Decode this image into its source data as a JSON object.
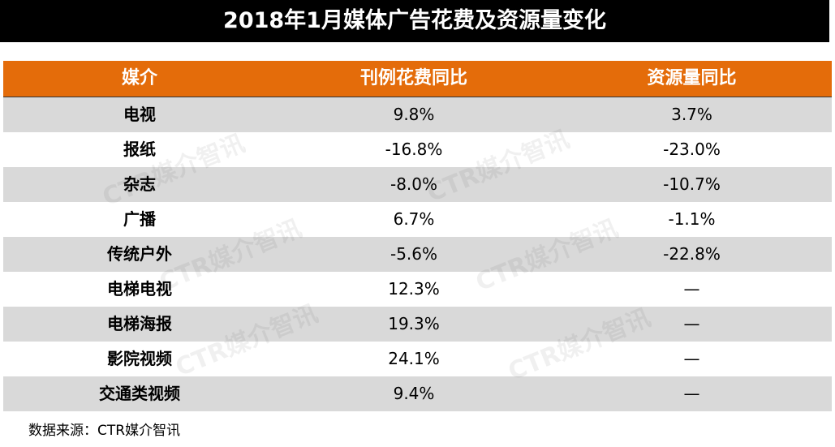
{
  "title": "2018年1月媒体广告花费及资源量变化",
  "table": {
    "header": [
      "媒介",
      "刊例花费同比",
      "资源量同比"
    ],
    "rows": [
      [
        "电视",
        "9.8%",
        "3.7%"
      ],
      [
        "报纸",
        "-16.8%",
        "-23.0%"
      ],
      [
        "杂志",
        "-8.0%",
        "-10.7%"
      ],
      [
        "广播",
        "6.7%",
        "-1.1%"
      ],
      [
        "传统户外",
        "-5.6%",
        "-22.8%"
      ],
      [
        "电梯电视",
        "12.3%",
        "—"
      ],
      [
        "电梯海报",
        "19.3%",
        "—"
      ],
      [
        "影院视频",
        "24.1%",
        "—"
      ],
      [
        "交通类视频",
        "9.4%",
        "—"
      ]
    ]
  },
  "watermark": "CTR媒介智讯",
  "source": "数据来源：CTR媒介智讯"
}
